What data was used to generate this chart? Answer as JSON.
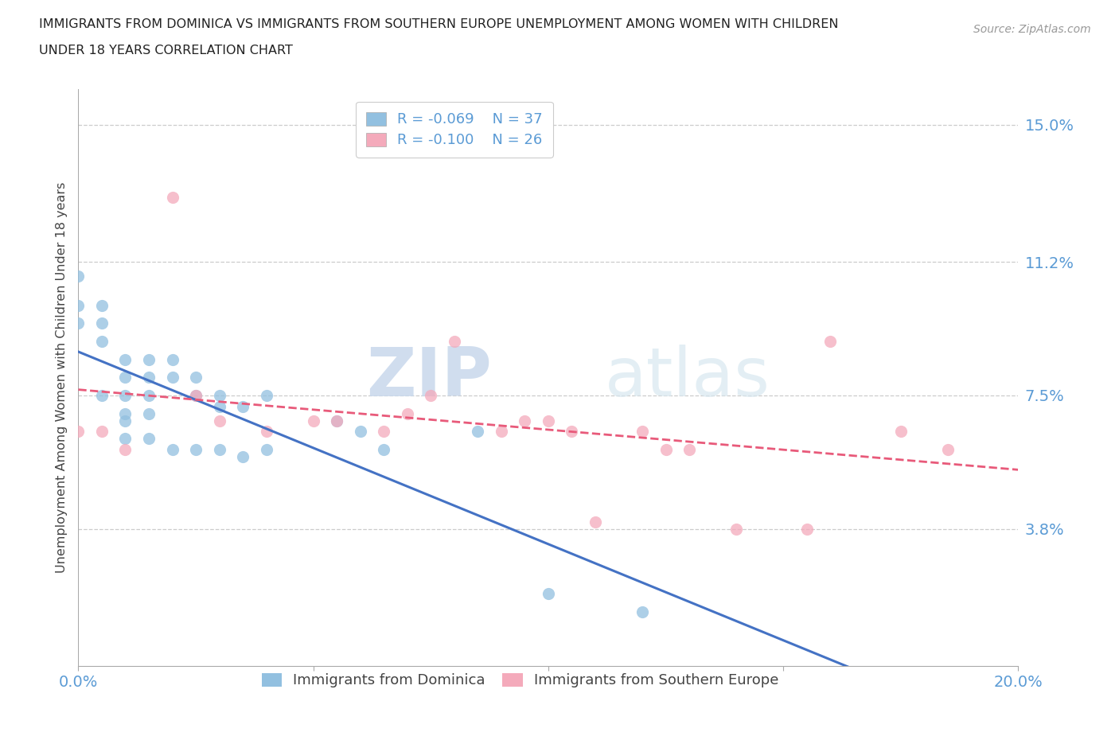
{
  "title_line1": "IMMIGRANTS FROM DOMINICA VS IMMIGRANTS FROM SOUTHERN EUROPE UNEMPLOYMENT AMONG WOMEN WITH CHILDREN",
  "title_line2": "UNDER 18 YEARS CORRELATION CHART",
  "source": "Source: ZipAtlas.com",
  "ylabel": "Unemployment Among Women with Children Under 18 years",
  "xlim": [
    0,
    0.2
  ],
  "ylim": [
    0,
    0.16
  ],
  "yticks": [
    0.038,
    0.075,
    0.112,
    0.15
  ],
  "ytick_labels": [
    "3.8%",
    "7.5%",
    "11.2%",
    "15.0%"
  ],
  "xticks": [
    0.0,
    0.05,
    0.1,
    0.15,
    0.2
  ],
  "xtick_labels": [
    "0.0%",
    "",
    "",
    "",
    "20.0%"
  ],
  "legend_R1": "R = -0.069",
  "legend_N1": "N = 37",
  "legend_R2": "R = -0.100",
  "legend_N2": "N = 26",
  "color_dominica": "#92C0E0",
  "color_s_europe": "#F4AABB",
  "color_axis_labels": "#5B9BD5",
  "watermark_zip": "ZIP",
  "watermark_atlas": "atlas",
  "dominica_x": [
    0.0,
    0.0,
    0.0,
    0.005,
    0.005,
    0.005,
    0.01,
    0.01,
    0.01,
    0.01,
    0.015,
    0.015,
    0.015,
    0.015,
    0.02,
    0.02,
    0.025,
    0.025,
    0.03,
    0.03,
    0.035,
    0.04,
    0.005,
    0.01,
    0.01,
    0.015,
    0.02,
    0.025,
    0.03,
    0.035,
    0.04,
    0.055,
    0.06,
    0.065,
    0.085,
    0.1,
    0.12
  ],
  "dominica_y": [
    0.108,
    0.1,
    0.095,
    0.1,
    0.095,
    0.09,
    0.085,
    0.08,
    0.075,
    0.07,
    0.085,
    0.08,
    0.075,
    0.07,
    0.085,
    0.08,
    0.08,
    0.075,
    0.075,
    0.072,
    0.072,
    0.075,
    0.075,
    0.068,
    0.063,
    0.063,
    0.06,
    0.06,
    0.06,
    0.058,
    0.06,
    0.068,
    0.065,
    0.06,
    0.065,
    0.02,
    0.015
  ],
  "s_europe_x": [
    0.0,
    0.005,
    0.01,
    0.02,
    0.025,
    0.03,
    0.04,
    0.05,
    0.055,
    0.065,
    0.07,
    0.075,
    0.08,
    0.09,
    0.095,
    0.1,
    0.105,
    0.11,
    0.12,
    0.125,
    0.13,
    0.14,
    0.155,
    0.16,
    0.175,
    0.185
  ],
  "s_europe_y": [
    0.065,
    0.065,
    0.06,
    0.13,
    0.075,
    0.068,
    0.065,
    0.068,
    0.068,
    0.065,
    0.07,
    0.075,
    0.09,
    0.065,
    0.068,
    0.068,
    0.065,
    0.04,
    0.065,
    0.06,
    0.06,
    0.038,
    0.038,
    0.09,
    0.065,
    0.06
  ]
}
